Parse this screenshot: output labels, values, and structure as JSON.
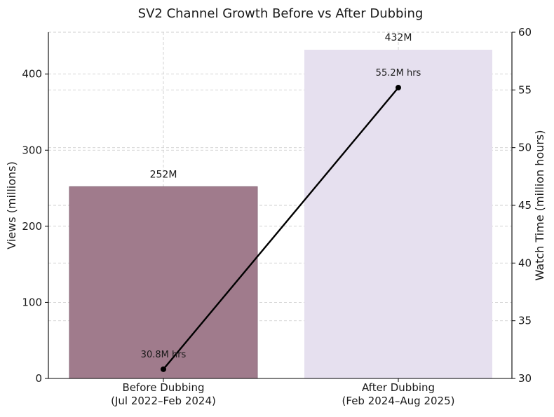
{
  "chart_data": {
    "type": "bar",
    "title": "SV2 Channel Growth Before vs After Dubbing",
    "categories": [
      [
        "Before Dubbing",
        "(Jul 2022–Feb 2024)"
      ],
      [
        "After Dubbing",
        "(Feb 2024–Aug 2025)"
      ]
    ],
    "ylabel": "Views (millions)",
    "y2label": "Watch Time (million hours)",
    "ylim": [
      0,
      455
    ],
    "y2lim": [
      30,
      60
    ],
    "yticks": [
      0,
      100,
      200,
      300,
      400
    ],
    "y2ticks": [
      30,
      35,
      40,
      45,
      50,
      55,
      60
    ],
    "grid": true,
    "series": [
      {
        "name": "Views",
        "kind": "bar",
        "axis": "left",
        "values": [
          252,
          432
        ],
        "labels": [
          "252M",
          "432M"
        ],
        "colors": [
          "#a07b8c",
          "#e6e0ef"
        ]
      },
      {
        "name": "Watch Time",
        "kind": "line",
        "axis": "right",
        "values": [
          30.8,
          55.2
        ],
        "labels": [
          "30.8M hrs",
          "55.2M hrs"
        ],
        "color": "#000000"
      }
    ]
  }
}
